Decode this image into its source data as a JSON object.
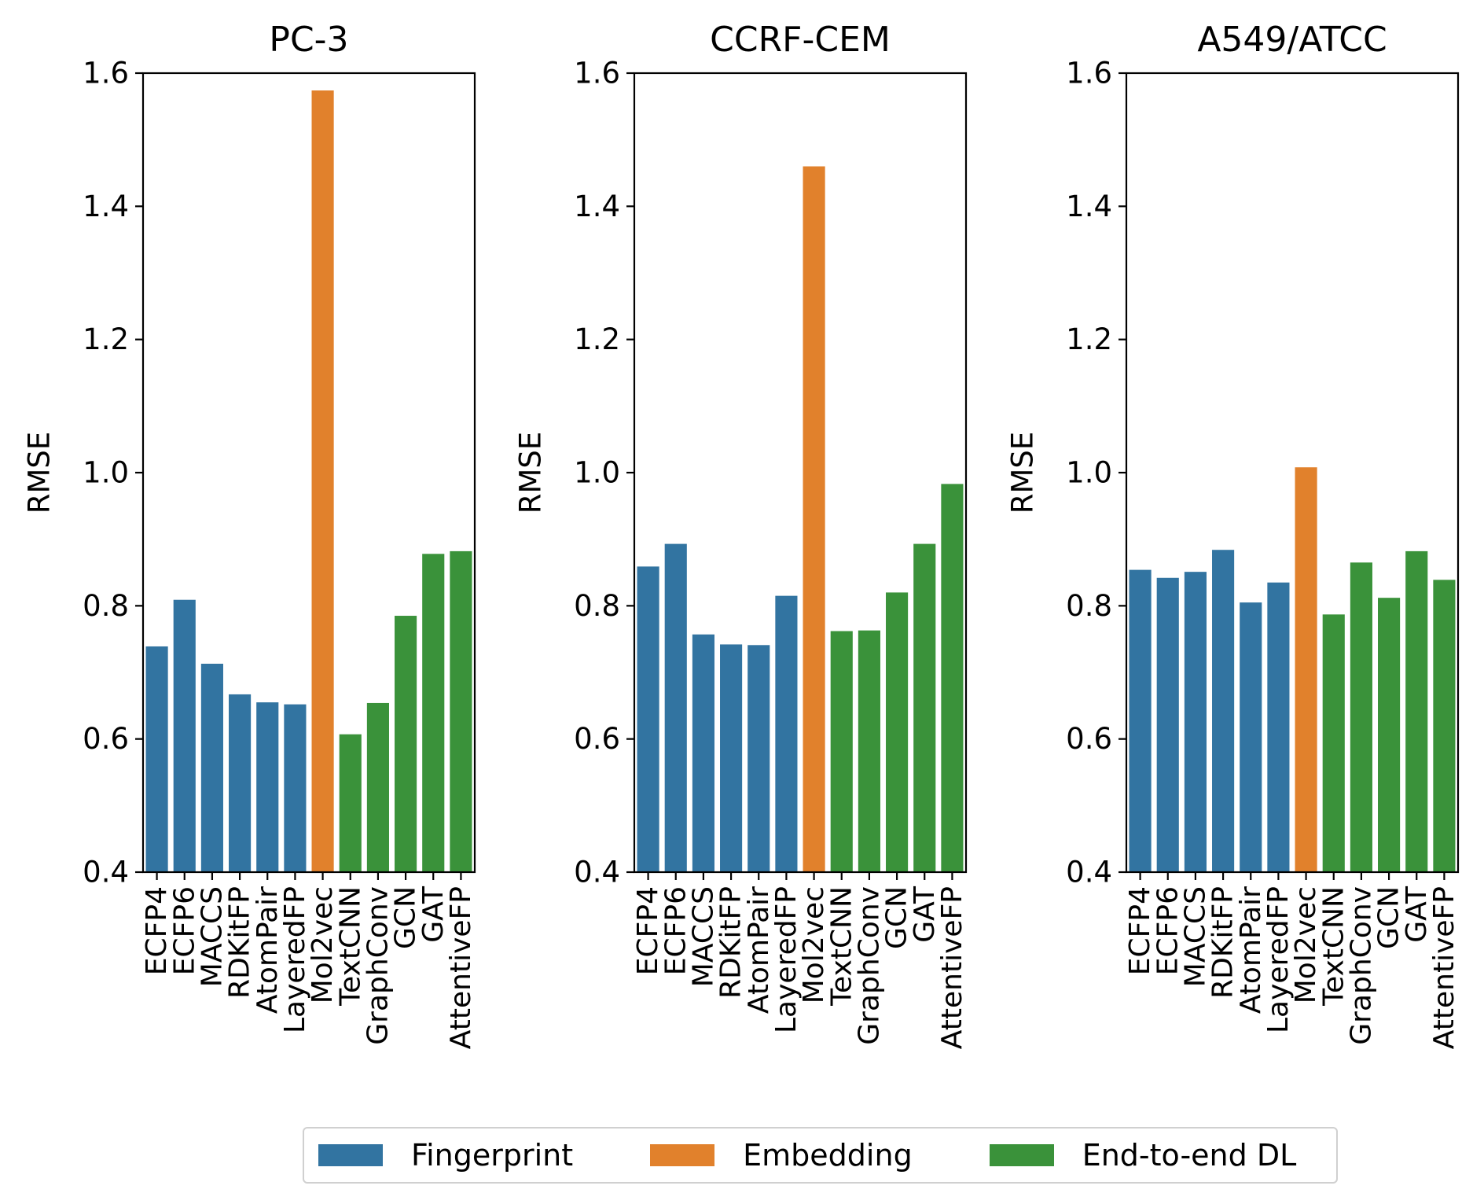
{
  "chart_data": [
    {
      "type": "bar",
      "title": "PC-3",
      "xlabel": "",
      "ylabel": "RMSE",
      "ylim": [
        0.4,
        1.6
      ],
      "yticks": [
        "0.4",
        "0.6",
        "0.8",
        "1.0",
        "1.2",
        "1.4",
        "1.6"
      ],
      "categories": [
        "ECFP4",
        "ECFP6",
        "MACCS",
        "RDKitFP",
        "AtomPair",
        "LayeredFP",
        "Mol2vec",
        "TextCNN",
        "GraphConv",
        "GCN",
        "GAT",
        "AttentiveFP"
      ],
      "groups": [
        "Fingerprint",
        "Fingerprint",
        "Fingerprint",
        "Fingerprint",
        "Fingerprint",
        "Fingerprint",
        "Embedding",
        "End-to-end DL",
        "End-to-end DL",
        "End-to-end DL",
        "End-to-end DL",
        "End-to-end DL"
      ],
      "values": [
        0.739,
        0.809,
        0.713,
        0.667,
        0.655,
        0.652,
        1.574,
        0.607,
        0.654,
        0.785,
        0.878,
        0.882
      ]
    },
    {
      "type": "bar",
      "title": "CCRF-CEM",
      "xlabel": "",
      "ylabel": "RMSE",
      "ylim": [
        0.4,
        1.6
      ],
      "yticks": [
        "0.4",
        "0.6",
        "0.8",
        "1.0",
        "1.2",
        "1.4",
        "1.6"
      ],
      "categories": [
        "ECFP4",
        "ECFP6",
        "MACCS",
        "RDKitFP",
        "AtomPair",
        "LayeredFP",
        "Mol2vec",
        "TextCNN",
        "GraphConv",
        "GCN",
        "GAT",
        "AttentiveFP"
      ],
      "groups": [
        "Fingerprint",
        "Fingerprint",
        "Fingerprint",
        "Fingerprint",
        "Fingerprint",
        "Fingerprint",
        "Embedding",
        "End-to-end DL",
        "End-to-end DL",
        "End-to-end DL",
        "End-to-end DL",
        "End-to-end DL"
      ],
      "values": [
        0.859,
        0.893,
        0.757,
        0.742,
        0.741,
        0.815,
        1.46,
        0.762,
        0.763,
        0.82,
        0.893,
        0.983
      ]
    },
    {
      "type": "bar",
      "title": "A549/ATCC",
      "xlabel": "",
      "ylabel": "RMSE",
      "ylim": [
        0.4,
        1.6
      ],
      "yticks": [
        "0.4",
        "0.6",
        "0.8",
        "1.0",
        "1.2",
        "1.4",
        "1.6"
      ],
      "categories": [
        "ECFP4",
        "ECFP6",
        "MACCS",
        "RDKitFP",
        "AtomPair",
        "LayeredFP",
        "Mol2vec",
        "TextCNN",
        "GraphConv",
        "GCN",
        "GAT",
        "AttentiveFP"
      ],
      "groups": [
        "Fingerprint",
        "Fingerprint",
        "Fingerprint",
        "Fingerprint",
        "Fingerprint",
        "Fingerprint",
        "Embedding",
        "End-to-end DL",
        "End-to-end DL",
        "End-to-end DL",
        "End-to-end DL",
        "End-to-end DL"
      ],
      "values": [
        0.854,
        0.842,
        0.851,
        0.884,
        0.805,
        0.835,
        1.008,
        0.787,
        0.865,
        0.812,
        0.882,
        0.839
      ]
    }
  ],
  "legend": {
    "placement": "bottom-center",
    "items": [
      {
        "label": "Fingerprint",
        "color": "#3274a1"
      },
      {
        "label": "Embedding",
        "color": "#e1812c"
      },
      {
        "label": "End-to-end DL",
        "color": "#3a923a"
      }
    ]
  }
}
